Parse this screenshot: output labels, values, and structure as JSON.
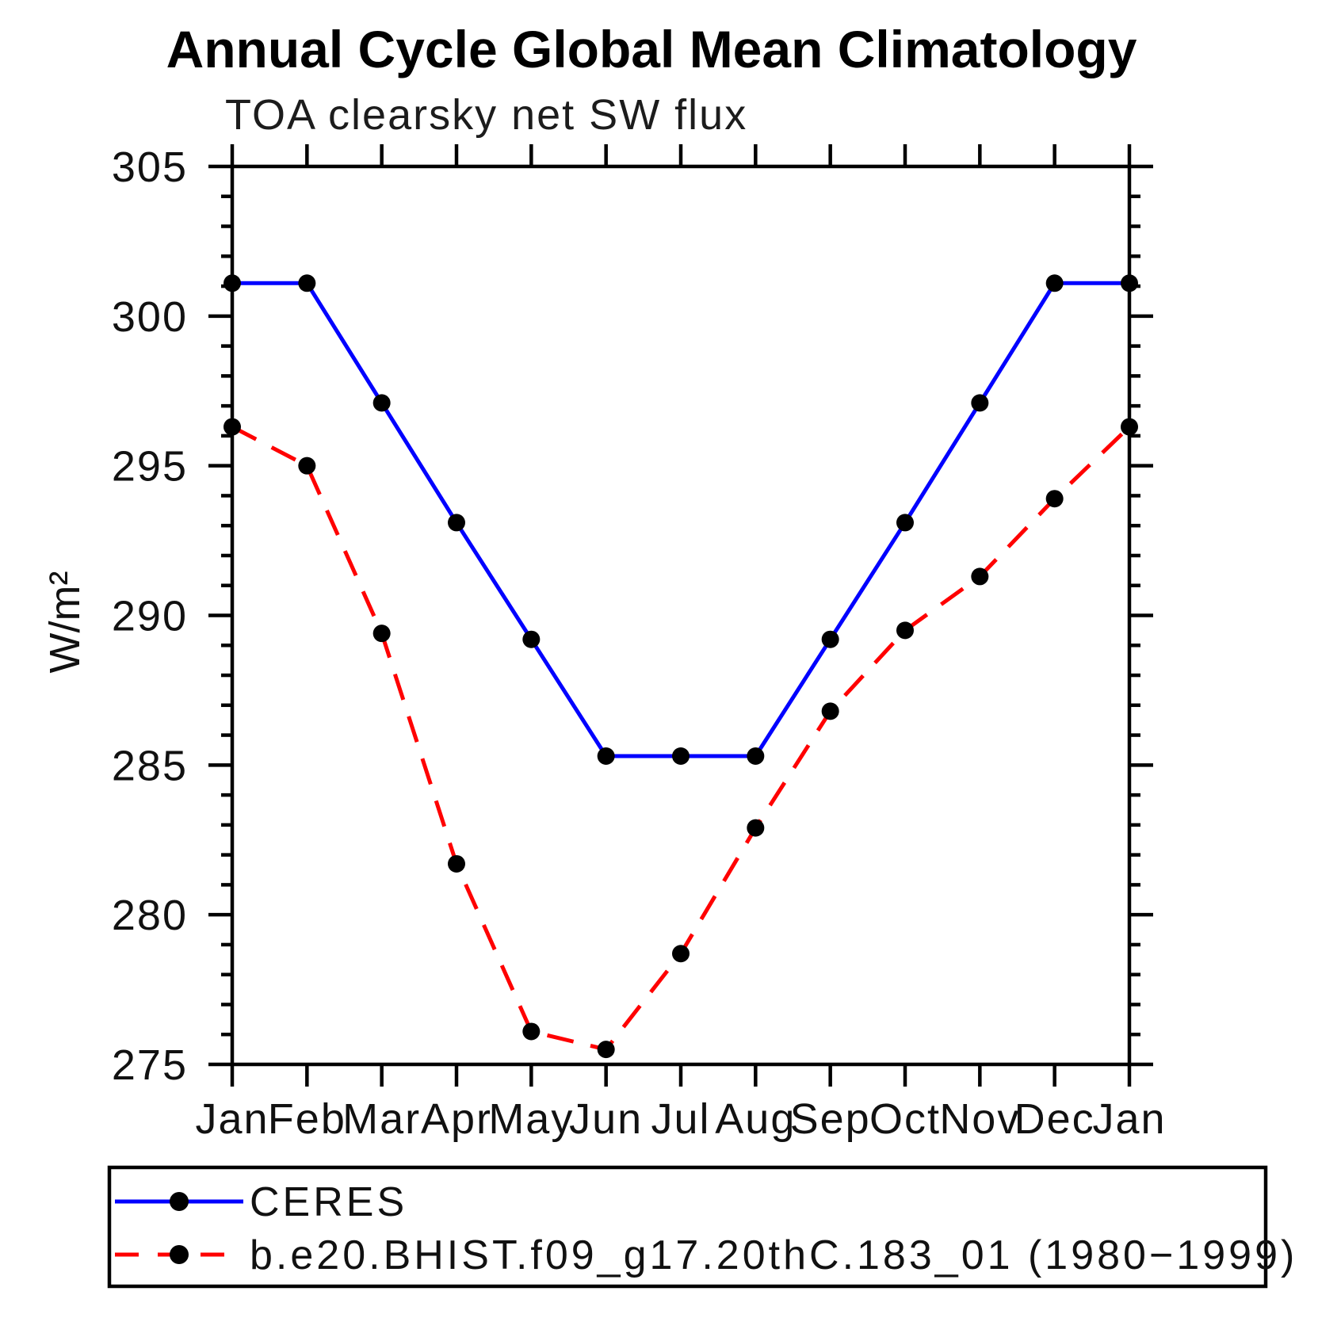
{
  "chart_data": {
    "type": "line",
    "title": "Annual Cycle Global Mean Climatology",
    "subtitle": "TOA clearsky net SW flux",
    "ylabel": "W/m²",
    "x_categories": [
      "Jan",
      "Feb",
      "Mar",
      "Apr",
      "May",
      "Jun",
      "Jul",
      "Aug",
      "Sep",
      "Oct",
      "Nov",
      "Dec",
      "Jan"
    ],
    "ylim": [
      275,
      305
    ],
    "ytick_major_interval": 5,
    "ytick_minor_interval": 1,
    "ytick_major_labels": [
      "275",
      "280",
      "285",
      "290",
      "295",
      "300",
      "305"
    ],
    "grid": false,
    "legend_position": "bottom",
    "frame_color": "#000000",
    "marker_color": "#000000",
    "series": [
      {
        "name": "CERES",
        "color": "#0000ff",
        "style": "solid",
        "marker": "circle",
        "values": [
          301.1,
          301.1,
          297.1,
          293.1,
          289.2,
          285.3,
          285.3,
          285.3,
          289.2,
          293.1,
          297.1,
          301.1,
          301.1
        ]
      },
      {
        "name": "b.e20.BHIST.f09_g17.20thC.183_01 (1980−1999)",
        "color": "#ff0000",
        "style": "dashed",
        "marker": "circle",
        "values": [
          296.3,
          295.0,
          289.4,
          281.7,
          276.1,
          275.5,
          278.7,
          282.9,
          286.8,
          289.5,
          291.3,
          293.9,
          296.3
        ]
      }
    ]
  }
}
